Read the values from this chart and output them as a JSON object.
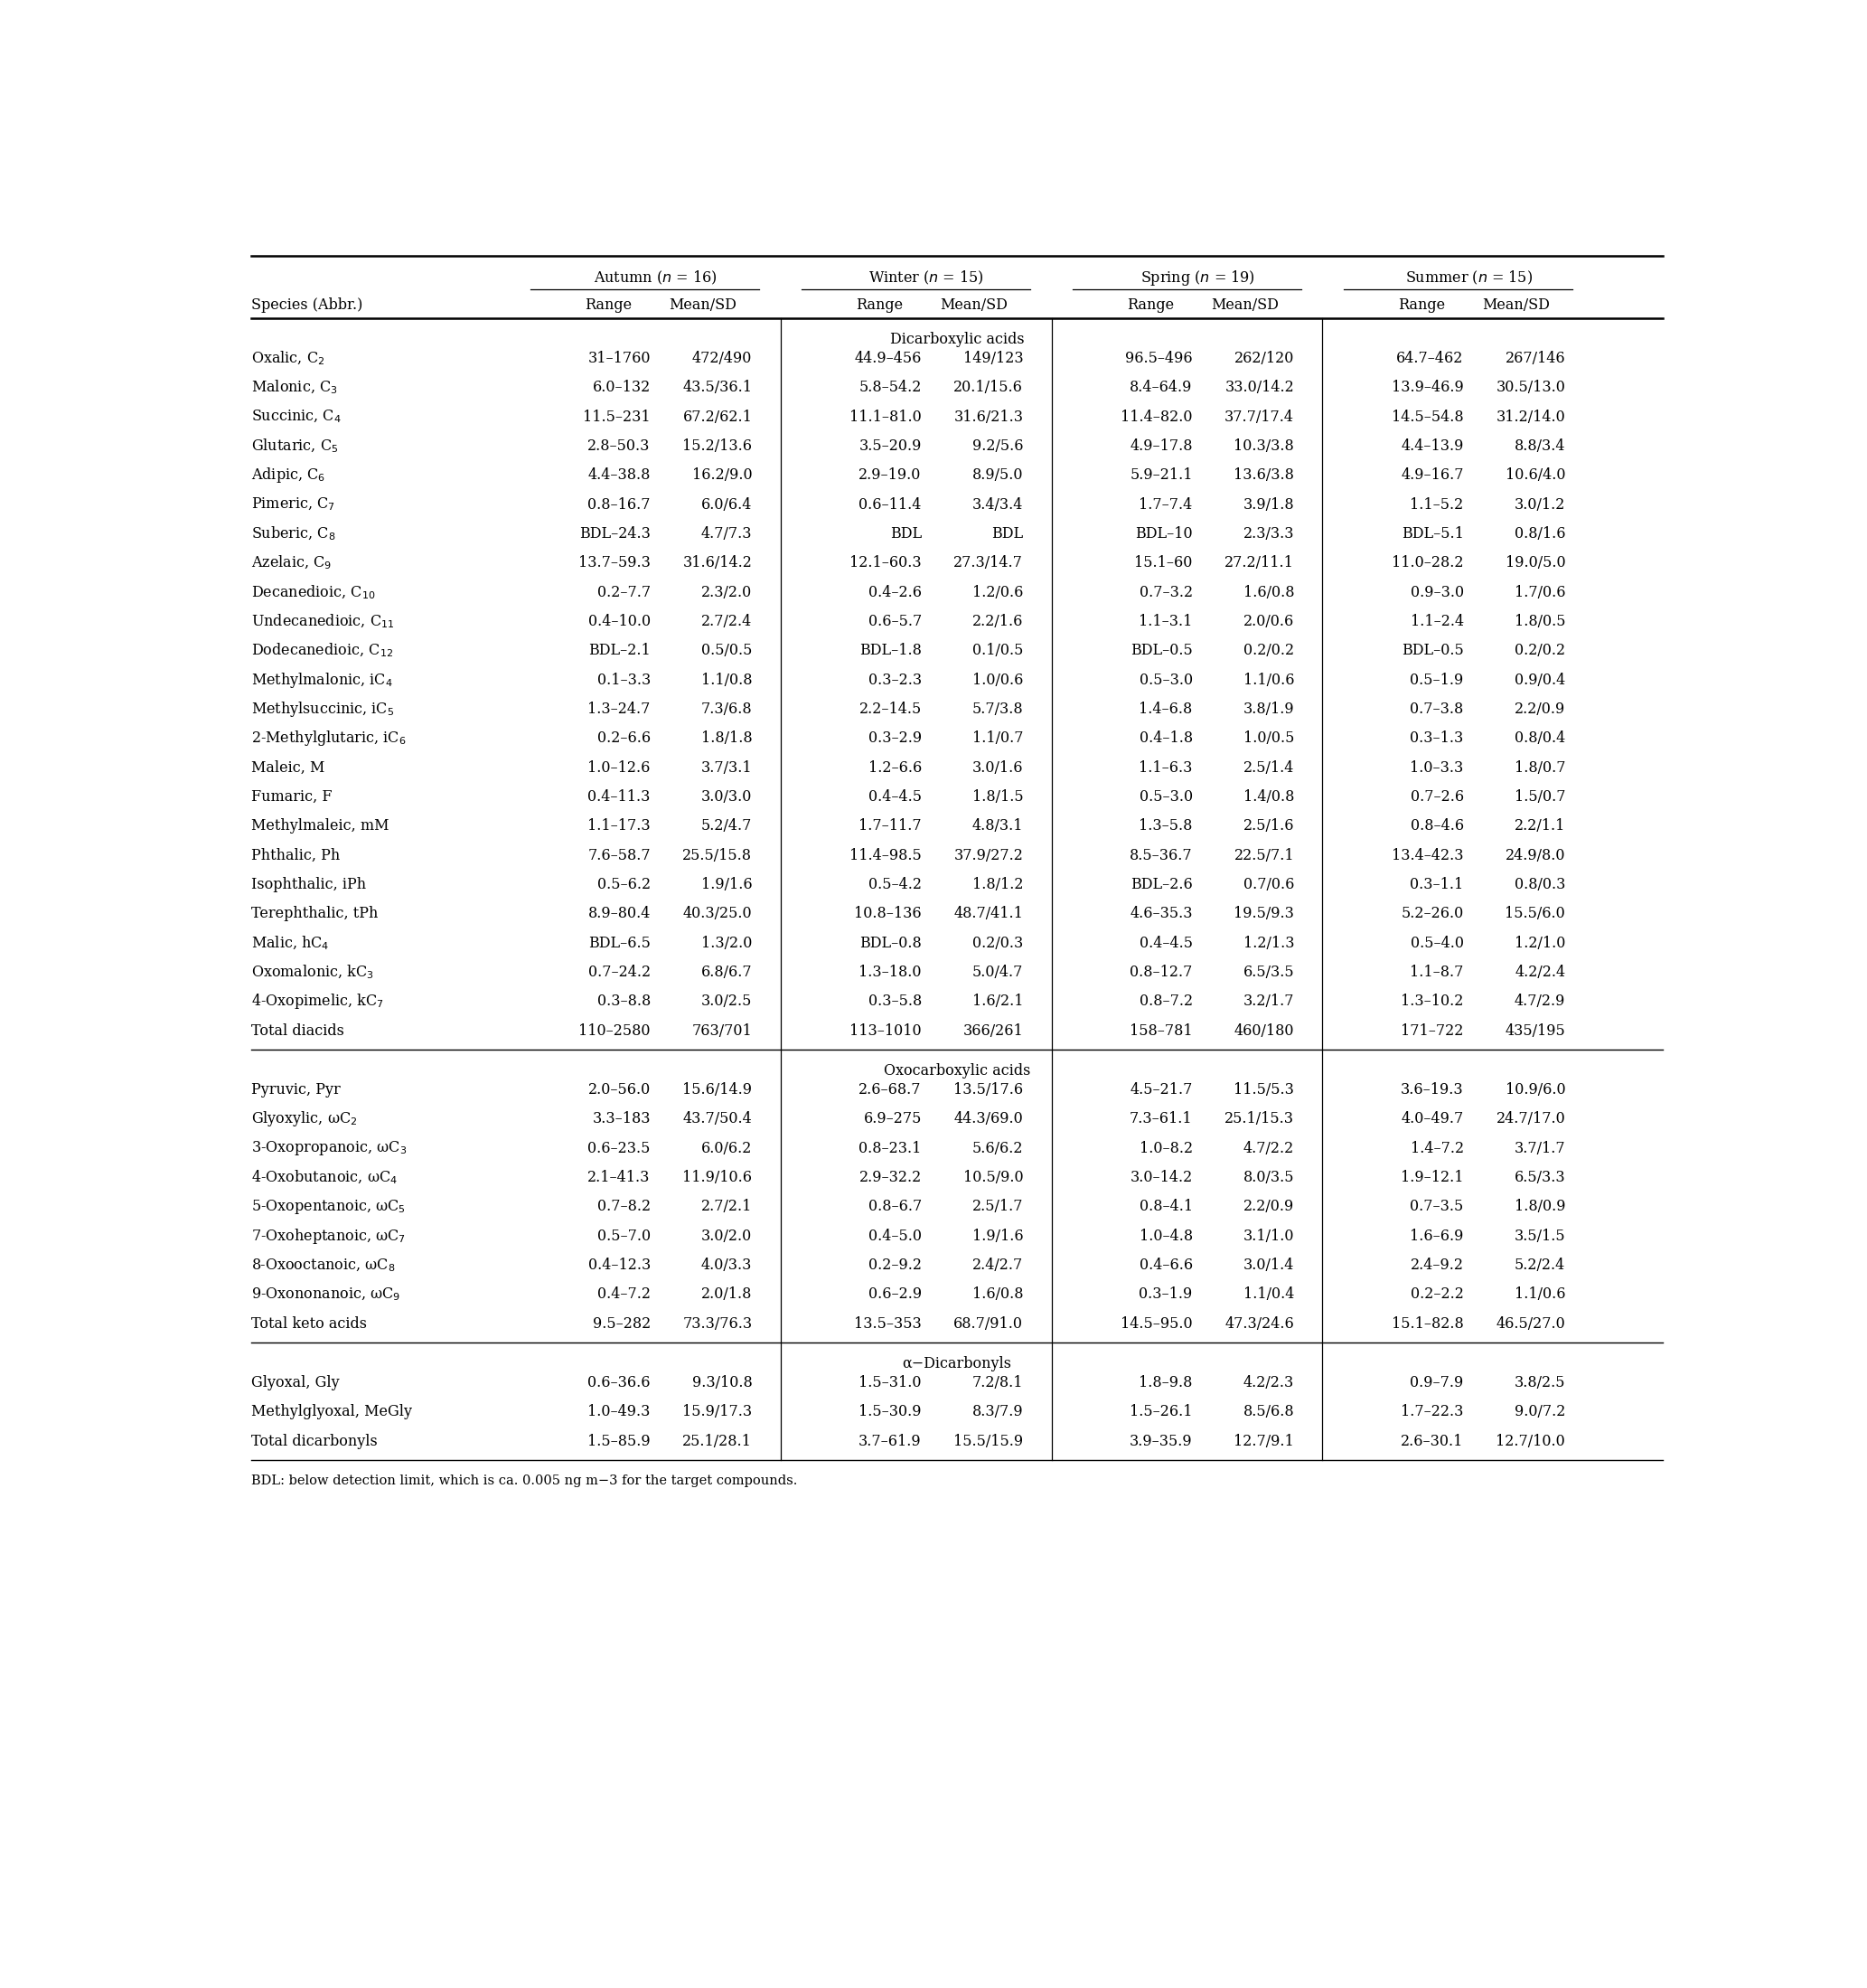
{
  "section_dicarboxylic": "Dicarboxylic acids",
  "section_oxocarboxylic": "Oxocarboxylic acids",
  "section_dicarbonyls": "α−Dicarbonyls",
  "rows_dicarboxylic": [
    [
      "Oxalic, C$_2$",
      "31–1760",
      "472/490",
      "44.9–456",
      "149/123",
      "96.5–496",
      "262/120",
      "64.7–462",
      "267/146"
    ],
    [
      "Malonic, C$_3$",
      "6.0–132",
      "43.5/36.1",
      "5.8–54.2",
      "20.1/15.6",
      "8.4–64.9",
      "33.0/14.2",
      "13.9–46.9",
      "30.5/13.0"
    ],
    [
      "Succinic, C$_4$",
      "11.5–231",
      "67.2/62.1",
      "11.1–81.0",
      "31.6/21.3",
      "11.4–82.0",
      "37.7/17.4",
      "14.5–54.8",
      "31.2/14.0"
    ],
    [
      "Glutaric, C$_5$",
      "2.8–50.3",
      "15.2/13.6",
      "3.5–20.9",
      "9.2/5.6",
      "4.9–17.8",
      "10.3/3.8",
      "4.4–13.9",
      "8.8/3.4"
    ],
    [
      "Adipic, C$_6$",
      "4.4–38.8",
      "16.2/9.0",
      "2.9–19.0",
      "8.9/5.0",
      "5.9–21.1",
      "13.6/3.8",
      "4.9–16.7",
      "10.6/4.0"
    ],
    [
      "Pimeric, C$_7$",
      "0.8–16.7",
      "6.0/6.4",
      "0.6–11.4",
      "3.4/3.4",
      "1.7–7.4",
      "3.9/1.8",
      "1.1–5.2",
      "3.0/1.2"
    ],
    [
      "Suberic, C$_8$",
      "BDL–24.3",
      "4.7/7.3",
      "BDL",
      "BDL",
      "BDL–10",
      "2.3/3.3",
      "BDL–5.1",
      "0.8/1.6"
    ],
    [
      "Azelaic, C$_9$",
      "13.7–59.3",
      "31.6/14.2",
      "12.1–60.3",
      "27.3/14.7",
      "15.1–60",
      "27.2/11.1",
      "11.0–28.2",
      "19.0/5.0"
    ],
    [
      "Decanedioic, C$_{10}$",
      "0.2–7.7",
      "2.3/2.0",
      "0.4–2.6",
      "1.2/0.6",
      "0.7–3.2",
      "1.6/0.8",
      "0.9–3.0",
      "1.7/0.6"
    ],
    [
      "Undecanedioic, C$_{11}$",
      "0.4–10.0",
      "2.7/2.4",
      "0.6–5.7",
      "2.2/1.6",
      "1.1–3.1",
      "2.0/0.6",
      "1.1–2.4",
      "1.8/0.5"
    ],
    [
      "Dodecanedioic, C$_{12}$",
      "BDL–2.1",
      "0.5/0.5",
      "BDL–1.8",
      "0.1/0.5",
      "BDL–0.5",
      "0.2/0.2",
      "BDL–0.5",
      "0.2/0.2"
    ],
    [
      "Methylmalonic, iC$_4$",
      "0.1–3.3",
      "1.1/0.8",
      "0.3–2.3",
      "1.0/0.6",
      "0.5–3.0",
      "1.1/0.6",
      "0.5–1.9",
      "0.9/0.4"
    ],
    [
      "Methylsuccinic, iC$_5$",
      "1.3–24.7",
      "7.3/6.8",
      "2.2–14.5",
      "5.7/3.8",
      "1.4–6.8",
      "3.8/1.9",
      "0.7–3.8",
      "2.2/0.9"
    ],
    [
      "2-Methylglutaric, iC$_6$",
      "0.2–6.6",
      "1.8/1.8",
      "0.3–2.9",
      "1.1/0.7",
      "0.4–1.8",
      "1.0/0.5",
      "0.3–1.3",
      "0.8/0.4"
    ],
    [
      "Maleic, M",
      "1.0–12.6",
      "3.7/3.1",
      "1.2–6.6",
      "3.0/1.6",
      "1.1–6.3",
      "2.5/1.4",
      "1.0–3.3",
      "1.8/0.7"
    ],
    [
      "Fumaric, F",
      "0.4–11.3",
      "3.0/3.0",
      "0.4–4.5",
      "1.8/1.5",
      "0.5–3.0",
      "1.4/0.8",
      "0.7–2.6",
      "1.5/0.7"
    ],
    [
      "Methylmaleic, mM",
      "1.1–17.3",
      "5.2/4.7",
      "1.7–11.7",
      "4.8/3.1",
      "1.3–5.8",
      "2.5/1.6",
      "0.8–4.6",
      "2.2/1.1"
    ],
    [
      "Phthalic, Ph",
      "7.6–58.7",
      "25.5/15.8",
      "11.4–98.5",
      "37.9/27.2",
      "8.5–36.7",
      "22.5/7.1",
      "13.4–42.3",
      "24.9/8.0"
    ],
    [
      "Isophthalic, iPh",
      "0.5–6.2",
      "1.9/1.6",
      "0.5–4.2",
      "1.8/1.2",
      "BDL–2.6",
      "0.7/0.6",
      "0.3–1.1",
      "0.8/0.3"
    ],
    [
      "Terephthalic, tPh",
      "8.9–80.4",
      "40.3/25.0",
      "10.8–136",
      "48.7/41.1",
      "4.6–35.3",
      "19.5/9.3",
      "5.2–26.0",
      "15.5/6.0"
    ],
    [
      "Malic, hC$_4$",
      "BDL–6.5",
      "1.3/2.0",
      "BDL–0.8",
      "0.2/0.3",
      "0.4–4.5",
      "1.2/1.3",
      "0.5–4.0",
      "1.2/1.0"
    ],
    [
      "Oxomalonic, kC$_3$",
      "0.7–24.2",
      "6.8/6.7",
      "1.3–18.0",
      "5.0/4.7",
      "0.8–12.7",
      "6.5/3.5",
      "1.1–8.7",
      "4.2/2.4"
    ],
    [
      "4-Oxopimelic, kC$_7$",
      "0.3–8.8",
      "3.0/2.5",
      "0.3–5.8",
      "1.6/2.1",
      "0.8–7.2",
      "3.2/1.7",
      "1.3–10.2",
      "4.7/2.9"
    ],
    [
      "Total diacids",
      "110–2580",
      "763/701",
      "113–1010",
      "366/261",
      "158–781",
      "460/180",
      "171–722",
      "435/195"
    ]
  ],
  "rows_oxocarboxylic": [
    [
      "Pyruvic, Pyr",
      "2.0–56.0",
      "15.6/14.9",
      "2.6–68.7",
      "13.5/17.6",
      "4.5–21.7",
      "11.5/5.3",
      "3.6–19.3",
      "10.9/6.0"
    ],
    [
      "Glyoxylic, ωC$_2$",
      "3.3–183",
      "43.7/50.4",
      "6.9–275",
      "44.3/69.0",
      "7.3–61.1",
      "25.1/15.3",
      "4.0–49.7",
      "24.7/17.0"
    ],
    [
      "3-Oxopropanoic, ωC$_3$",
      "0.6–23.5",
      "6.0/6.2",
      "0.8–23.1",
      "5.6/6.2",
      "1.0–8.2",
      "4.7/2.2",
      "1.4–7.2",
      "3.7/1.7"
    ],
    [
      "4-Oxobutanoic, ωC$_4$",
      "2.1–41.3",
      "11.9/10.6",
      "2.9–32.2",
      "10.5/9.0",
      "3.0–14.2",
      "8.0/3.5",
      "1.9–12.1",
      "6.5/3.3"
    ],
    [
      "5-Oxopentanoic, ωC$_5$",
      "0.7–8.2",
      "2.7/2.1",
      "0.8–6.7",
      "2.5/1.7",
      "0.8–4.1",
      "2.2/0.9",
      "0.7–3.5",
      "1.8/0.9"
    ],
    [
      "7-Oxoheptanoic, ωC$_7$",
      "0.5–7.0",
      "3.0/2.0",
      "0.4–5.0",
      "1.9/1.6",
      "1.0–4.8",
      "3.1/1.0",
      "1.6–6.9",
      "3.5/1.5"
    ],
    [
      "8-Oxooctanoic, ωC$_8$",
      "0.4–12.3",
      "4.0/3.3",
      "0.2–9.2",
      "2.4/2.7",
      "0.4–6.6",
      "3.0/1.4",
      "2.4–9.2",
      "5.2/2.4"
    ],
    [
      "9-Oxononanoic, ωC$_9$",
      "0.4–7.2",
      "2.0/1.8",
      "0.6–2.9",
      "1.6/0.8",
      "0.3–1.9",
      "1.1/0.4",
      "0.2–2.2",
      "1.1/0.6"
    ],
    [
      "Total keto acids",
      "9.5–282",
      "73.3/76.3",
      "13.5–353",
      "68.7/91.0",
      "14.5–95.0",
      "47.3/24.6",
      "15.1–82.8",
      "46.5/27.0"
    ]
  ],
  "rows_dicarbonyls": [
    [
      "Glyoxal, Gly",
      "0.6–36.6",
      "9.3/10.8",
      "1.5–31.0",
      "7.2/8.1",
      "1.8–9.8",
      "4.2/2.3",
      "0.9–7.9",
      "3.8/2.5"
    ],
    [
      "Methylglyoxal, MeGly",
      "1.0–49.3",
      "15.9/17.3",
      "1.5–30.9",
      "8.3/7.9",
      "1.5–26.1",
      "8.5/6.8",
      "1.7–22.3",
      "9.0/7.2"
    ],
    [
      "Total dicarbonyls",
      "1.5–85.9",
      "25.1/28.1",
      "3.7–61.9",
      "15.5/15.9",
      "3.9–35.9",
      "12.7/9.1",
      "2.6–30.1",
      "12.7/10.0"
    ]
  ],
  "footnote": "BDL: below detection limit, which is ca. 0.005 ng m−3 for the target compounds.",
  "background_color": "#ffffff",
  "text_color": "#000000"
}
